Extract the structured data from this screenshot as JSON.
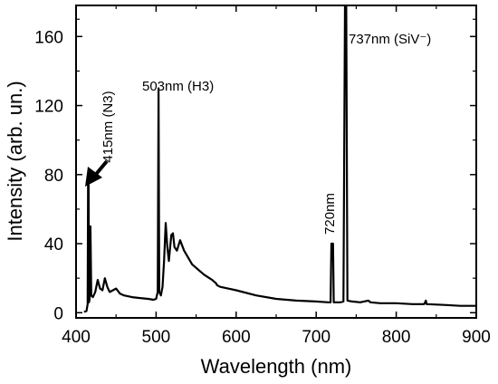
{
  "chart_data": {
    "type": "line",
    "title": "",
    "xlabel": "Wavelength (nm)",
    "ylabel": "Intensity (arb. un.)",
    "xlim": [
      400,
      900
    ],
    "ylim": [
      -3,
      178
    ],
    "x_ticks": [
      400,
      500,
      600,
      700,
      800,
      900
    ],
    "y_ticks": [
      0,
      40,
      80,
      120,
      160
    ],
    "grid": false,
    "legend": "none",
    "series": [
      {
        "color": "#000000",
        "points": [
          [
            410,
            0.5
          ],
          [
            413,
            1
          ],
          [
            414.5,
            5
          ],
          [
            415,
            80
          ],
          [
            415.6,
            80
          ],
          [
            416.2,
            6
          ],
          [
            417,
            8
          ],
          [
            418,
            50
          ],
          [
            419,
            10
          ],
          [
            421,
            9
          ],
          [
            424,
            12
          ],
          [
            427,
            19
          ],
          [
            430,
            14
          ],
          [
            433,
            13
          ],
          [
            436,
            20
          ],
          [
            439,
            15
          ],
          [
            442,
            12
          ],
          [
            446,
            13
          ],
          [
            450,
            14
          ],
          [
            455,
            11
          ],
          [
            460,
            10
          ],
          [
            470,
            9
          ],
          [
            480,
            8.5
          ],
          [
            490,
            8
          ],
          [
            497,
            7.5
          ],
          [
            500,
            8
          ],
          [
            502,
            12
          ],
          [
            503,
            130
          ],
          [
            504,
            12
          ],
          [
            506,
            10
          ],
          [
            508,
            15
          ],
          [
            510,
            30
          ],
          [
            512,
            52
          ],
          [
            514,
            38
          ],
          [
            516,
            30
          ],
          [
            519,
            45
          ],
          [
            521,
            46
          ],
          [
            523,
            38
          ],
          [
            526,
            36
          ],
          [
            530,
            42
          ],
          [
            535,
            36
          ],
          [
            545,
            28
          ],
          [
            560,
            22
          ],
          [
            570,
            19
          ],
          [
            575,
            17
          ],
          [
            576,
            16
          ],
          [
            580,
            15
          ],
          [
            600,
            13
          ],
          [
            625,
            10
          ],
          [
            650,
            8
          ],
          [
            675,
            7
          ],
          [
            700,
            6.5
          ],
          [
            715,
            6
          ],
          [
            718,
            6
          ],
          [
            719,
            40
          ],
          [
            721,
            40
          ],
          [
            722,
            6
          ],
          [
            730,
            6
          ],
          [
            734,
            6.5
          ],
          [
            736,
            180
          ],
          [
            737.5,
            180
          ],
          [
            739,
            7
          ],
          [
            745,
            6.5
          ],
          [
            755,
            6
          ],
          [
            765,
            7
          ],
          [
            768,
            6
          ],
          [
            780,
            5.5
          ],
          [
            800,
            5.5
          ],
          [
            820,
            5
          ],
          [
            835,
            5
          ],
          [
            837,
            7
          ],
          [
            838,
            5
          ],
          [
            860,
            4.5
          ],
          [
            880,
            4
          ],
          [
            900,
            4
          ]
        ]
      }
    ],
    "annotations": [
      {
        "text": "415nm (N3)",
        "x": 418,
        "y": 95
      },
      {
        "text": "503nm (H3)",
        "x": 503,
        "y": 133
      },
      {
        "text": "720nm",
        "x": 720,
        "y": 45
      },
      {
        "text": "737nm (SiV⁻)",
        "x": 741,
        "y": 160
      }
    ]
  }
}
